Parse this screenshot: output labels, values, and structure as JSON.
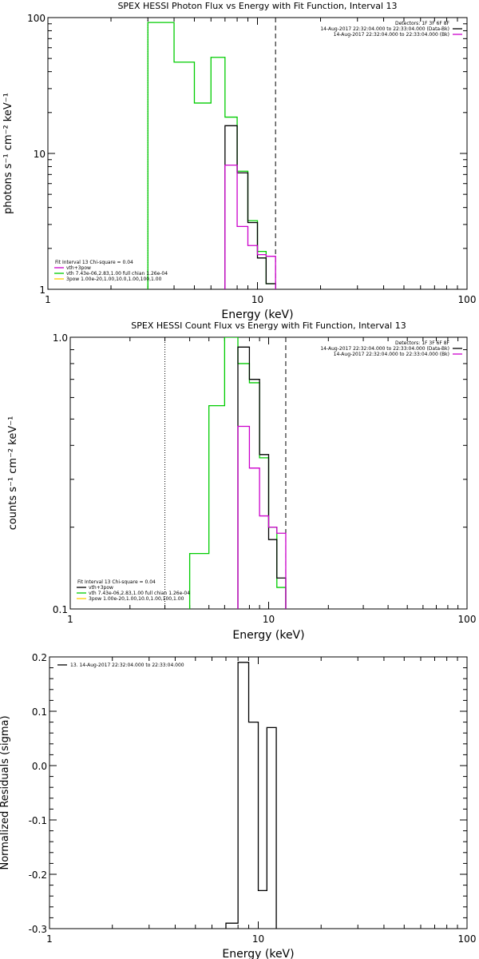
{
  "chart_data": [
    {
      "type": "line",
      "title": "SPEX HESSI Photon Flux vs Energy with Fit Function, Interval 13",
      "xlabel": "Energy (keV)",
      "ylabel": "photons s⁻¹ cm⁻² keV⁻¹",
      "xscale": "log",
      "yscale": "log",
      "xlim": [
        1,
        100
      ],
      "ylim": [
        1,
        100
      ],
      "xticks": [
        {
          "value": 1,
          "label": "1"
        },
        {
          "value": 10,
          "label": "10"
        },
        {
          "value": 100,
          "label": "100"
        }
      ],
      "yticks": [
        {
          "value": 1,
          "label": "1"
        },
        {
          "value": 10,
          "label": "10"
        },
        {
          "value": 100,
          "label": "100"
        }
      ],
      "vlines": [
        {
          "x": 3.0,
          "style": "dotted",
          "color": "#000000"
        },
        {
          "x": 12.2,
          "style": "dashed",
          "color": "#000000"
        }
      ],
      "series": [
        {
          "color": "#00cc00",
          "edges": [
            3.0,
            4.0,
            5.0,
            6.0,
            7.0,
            8.0,
            9.0,
            10.0,
            11.0,
            12.2
          ],
          "values": [
            92,
            47,
            23.5,
            51,
            18.5,
            7.4,
            3.2,
            1.9,
            1.1
          ]
        },
        {
          "color": "#000000",
          "edges": [
            7.0,
            8.0,
            9.0,
            10.0,
            11.0,
            12.2
          ],
          "values": [
            16,
            7.2,
            3.1,
            1.7,
            1.1
          ]
        },
        {
          "color": "#cc00cc",
          "edges": [
            7.0,
            8.0,
            9.0,
            10.0,
            11.0,
            12.2
          ],
          "values": [
            8.2,
            2.9,
            2.1,
            1.8,
            1.75
          ]
        }
      ],
      "header_lines": [
        {
          "text": "Detectors: 1F 3F 6F 8F",
          "color": null
        },
        {
          "text": "14-Aug-2017 22:32:04.000 to 22:33:04.000 (Data-Bk)",
          "color": "#000000"
        },
        {
          "text": "14-Aug-2017 22:32:04.000 to 22:33:04.000 (Bk)",
          "color": "#cc00cc"
        }
      ],
      "fit_lines": [
        {
          "text": "Fit Interval 13   Chi-square = 0.04",
          "color": null
        },
        {
          "text": "vth+3pow",
          "color": "#cc00cc"
        },
        {
          "text": "vth 7.43e-06,2.83,1.00   full chian 1.26e-04",
          "color": "#00cc00"
        },
        {
          "text": "3pow 1.00e-20,1.00,10.0,1.00,100,1.00",
          "color": "#ffcc00"
        }
      ]
    },
    {
      "type": "line",
      "title": "SPEX HESSI Count Flux vs Energy with Fit Function, Interval 13",
      "xlabel": "Energy (keV)",
      "ylabel": "counts s⁻¹ cm⁻² keV⁻¹",
      "xscale": "log",
      "yscale": "log",
      "xlim": [
        1,
        100
      ],
      "ylim": [
        0.1,
        1.0
      ],
      "xticks": [
        {
          "value": 1,
          "label": "1"
        },
        {
          "value": 10,
          "label": "10"
        },
        {
          "value": 100,
          "label": "100"
        }
      ],
      "yticks": [
        {
          "value": 0.1,
          "label": "0.1"
        },
        {
          "value": 1.0,
          "label": "1.0"
        }
      ],
      "vlines": [
        {
          "x": 3.0,
          "style": "dotted",
          "color": "#000000"
        },
        {
          "x": 12.2,
          "style": "dashed",
          "color": "#000000"
        }
      ],
      "series": [
        {
          "color": "#00cc00",
          "edges": [
            4.0,
            5.0,
            6.0,
            7.0,
            8.0,
            9.0,
            10.0,
            11.0,
            12.2
          ],
          "values": [
            0.16,
            0.56,
            1.0,
            0.8,
            0.68,
            0.36,
            0.2,
            0.12
          ]
        },
        {
          "color": "#000000",
          "edges": [
            7.0,
            8.0,
            9.0,
            10.0,
            11.0,
            12.2
          ],
          "values": [
            0.92,
            0.7,
            0.37,
            0.18,
            0.13
          ]
        },
        {
          "color": "#cc00cc",
          "edges": [
            7.0,
            8.0,
            9.0,
            10.0,
            11.0,
            12.2
          ],
          "values": [
            0.47,
            0.33,
            0.22,
            0.2,
            0.19
          ]
        }
      ],
      "header_lines": [
        {
          "text": "Detectors: 1F 3F 6F 8F",
          "color": null
        },
        {
          "text": "14-Aug-2017 22:32:04.000 to 22:33:04.000 (Data-Bk)",
          "color": "#000000"
        },
        {
          "text": "14-Aug-2017 22:32:04.000 to 22:33:04.000 (Bk)",
          "color": "#cc00cc"
        }
      ],
      "fit_lines": [
        {
          "text": "Fit Interval 13   Chi-square = 0.04",
          "color": null
        },
        {
          "text": "vth+3pow",
          "color": "#000000"
        },
        {
          "text": "vth 7.43e-06,2.83,1.00   full chian 1.26e-04",
          "color": "#00cc00"
        },
        {
          "text": "3pow 1.00e-20,1.00,10.0,1.00,100,1.00",
          "color": "#ffcc00"
        }
      ]
    },
    {
      "type": "line",
      "title": "",
      "xlabel": "Energy (keV)",
      "ylabel": "Normalized Residuals (sigma)",
      "xscale": "log",
      "yscale": "linear",
      "xlim": [
        1,
        100
      ],
      "ylim": [
        -0.3,
        0.2
      ],
      "xticks": [
        {
          "value": 1,
          "label": "1"
        },
        {
          "value": 10,
          "label": "10"
        },
        {
          "value": 100,
          "label": "100"
        }
      ],
      "yticks": [
        {
          "value": 0.2,
          "label": "0.2"
        },
        {
          "value": 0.1,
          "label": "0.1"
        },
        {
          "value": 0.0,
          "label": "0.0"
        },
        {
          "value": -0.1,
          "label": "-0.1"
        },
        {
          "value": -0.2,
          "label": "-0.2"
        },
        {
          "value": -0.3,
          "label": "-0.3"
        }
      ],
      "vlines": [],
      "series": [
        {
          "color": "#000000",
          "edges": [
            7.0,
            8.0,
            9.0,
            10.0,
            11.0,
            12.2
          ],
          "values": [
            -0.29,
            0.19,
            0.08,
            -0.23,
            0.07
          ],
          "bottom": -0.3
        }
      ],
      "header_lines": [],
      "fit_lines": [],
      "legend_lines": [
        {
          "text": "13. 14-Aug-2017 22:32:04.000 to 22:33:04.000",
          "color": "#000000"
        }
      ]
    }
  ]
}
